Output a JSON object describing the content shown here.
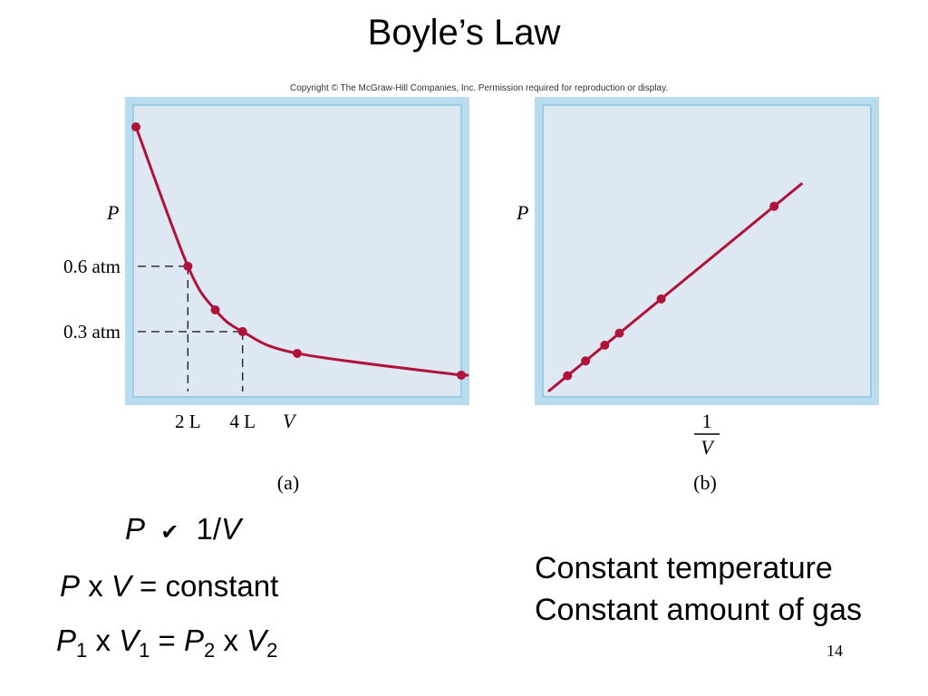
{
  "slide": {
    "title": "Boyle’s Law",
    "copyright": "Copyright © The McGraw-Hill Companies, Inc. Permission required for reproduction or display.",
    "page_number": "14"
  },
  "equations": {
    "line1": {
      "p": "P",
      "symbol": "✔",
      "rhs_num": "1/",
      "rhs_v": "V"
    },
    "line2": {
      "p": "P",
      "x": "x",
      "v": "V",
      "rest": "= constant"
    },
    "line3": {
      "p": "P",
      "s1": "1",
      "x1": "x",
      "v": "V",
      "s2": "1",
      "eq": "=",
      "p2": "P",
      "s3": "2",
      "x2": "x",
      "v2": "V",
      "s4": "2"
    }
  },
  "conditions": [
    "Constant temperature",
    "Constant amount of gas"
  ],
  "colors": {
    "curve": "#b0123a",
    "panel_fill": "#dde8f2",
    "panel_border": "#a9d2ea"
  },
  "chart_data": [
    {
      "type": "line",
      "panel_label": "(a)",
      "xlabel": "V",
      "ylabel": "P",
      "x_tick_labels": [
        {
          "x": 2,
          "label": "2 L"
        },
        {
          "x": 4,
          "label": "4 L"
        }
      ],
      "y_tick_labels": [
        {
          "y": 0.6,
          "label": "0.6 atm"
        },
        {
          "y": 0.3,
          "label": "0.3 atm"
        }
      ],
      "xlim": [
        0,
        12
      ],
      "ylim": [
        0,
        1.34
      ],
      "points": [
        {
          "x": 0.1,
          "y": 1.24
        },
        {
          "x": 2,
          "y": 0.6
        },
        {
          "x": 3,
          "y": 0.4
        },
        {
          "x": 4,
          "y": 0.3
        },
        {
          "x": 6,
          "y": 0.2
        },
        {
          "x": 12,
          "y": 0.1
        }
      ],
      "curve": "P ∝ 1/V",
      "dashed_guides": [
        {
          "x": 2,
          "y": 0.6
        },
        {
          "x": 4,
          "y": 0.3
        }
      ],
      "grid": false
    },
    {
      "type": "line",
      "panel_label": "(b)",
      "xlabel_num": "1",
      "xlabel_den": "V",
      "ylabel": "P",
      "xlim": [
        0,
        3
      ],
      "ylim": [
        0,
        3
      ],
      "points": [
        {
          "x": 0.17,
          "y": 0.17
        },
        {
          "x": 0.33,
          "y": 0.33
        },
        {
          "x": 0.5,
          "y": 0.5
        },
        {
          "x": 0.63,
          "y": 0.63
        },
        {
          "x": 1.0,
          "y": 1.0
        },
        {
          "x": 2.0,
          "y": 2.0
        }
      ],
      "line_extent": [
        0,
        2.25
      ],
      "grid": false
    }
  ]
}
